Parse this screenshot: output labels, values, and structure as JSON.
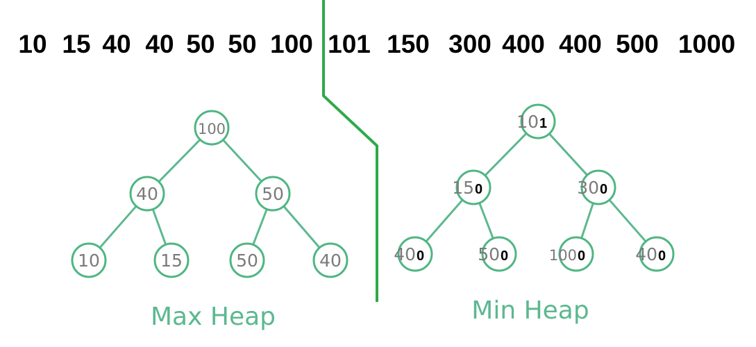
{
  "sequence": {
    "numbers": [
      "10",
      "15",
      "40",
      "40",
      "50",
      "50",
      "100",
      "101",
      "150",
      "300",
      "400",
      "400",
      "500",
      "1000"
    ]
  },
  "colors": {
    "edge": "#5cb88f",
    "node_stroke": "#4fb582",
    "node_text": "#7a7a7a",
    "label": "#5cb88f",
    "divider": "#2eaa4a",
    "sequence_text": "#000000",
    "suffix_text": "#000000"
  },
  "max_heap": {
    "title": "Max Heap",
    "nodes": [
      "100",
      "40",
      "50",
      "10",
      "15",
      "50",
      "40"
    ]
  },
  "min_heap": {
    "title": "Min Heap",
    "nodes": [
      {
        "printed": "10",
        "suffix": "1"
      },
      {
        "printed": "15",
        "suffix": "0"
      },
      {
        "printed": "30",
        "suffix": "0"
      },
      {
        "printed": "40",
        "suffix": "0"
      },
      {
        "printed": "50",
        "suffix": "0"
      },
      {
        "printed": "100",
        "suffix": "0"
      },
      {
        "printed": "40",
        "suffix": "0"
      }
    ]
  }
}
